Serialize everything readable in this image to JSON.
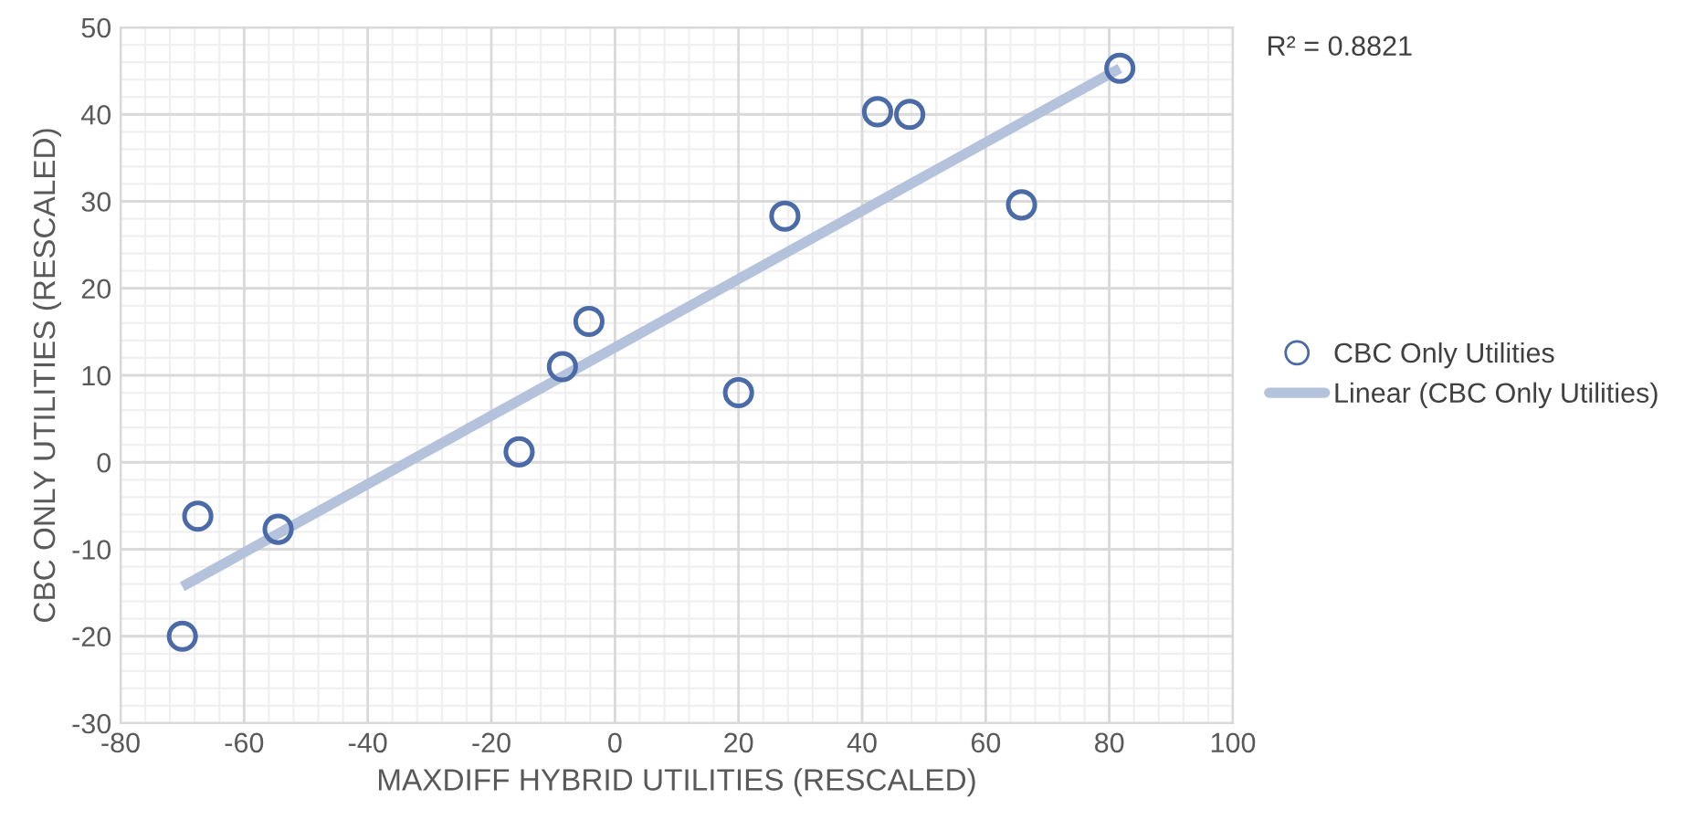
{
  "chart_data": {
    "type": "scatter",
    "xlabel": "MAXDIFF HYBRID UTILITIES (RESCALED)",
    "ylabel": "CBC ONLY UTILITIES (RESCALED)",
    "annotations": [
      "R² = 0.8821"
    ],
    "series": [
      {
        "name": "CBC Only Utilities",
        "color": "#4a6aa8",
        "x": [
          -70,
          -67.5,
          -54.5,
          -15.5,
          -8.5,
          -4.2,
          20,
          27.5,
          42.5,
          47.7,
          65.8,
          81.7
        ],
        "values": [
          -20,
          -6.2,
          -7.7,
          1.2,
          11,
          16.2,
          8,
          28.3,
          40.3,
          40,
          29.6,
          45.3
        ],
        "marker": "circle"
      },
      {
        "name": "Linear (CBC Only Utilities)",
        "type": "line",
        "color": "#b4c2dc",
        "x": [
          -70,
          81.7
        ],
        "values": [
          -14.3,
          45.3
        ],
        "line_style": "solid"
      }
    ],
    "xlim": [
      -80,
      100
    ],
    "xticks": [
      -80,
      -60,
      -40,
      -20,
      0,
      20,
      40,
      60,
      80,
      100
    ],
    "ylim": [
      -30,
      50
    ],
    "yticks": [
      -30,
      -20,
      -10,
      0,
      10,
      20,
      30,
      40,
      50
    ],
    "grid": true,
    "legend": "right"
  }
}
